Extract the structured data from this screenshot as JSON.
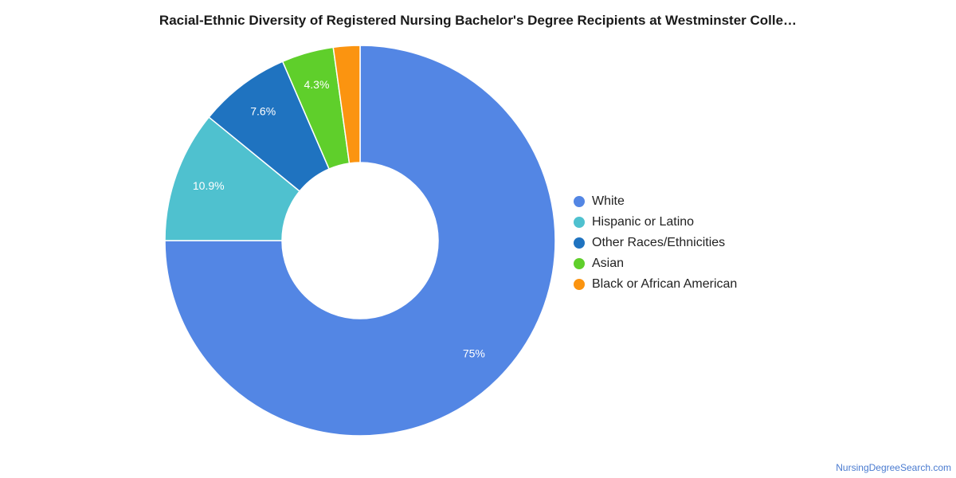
{
  "chart_data": {
    "type": "pie",
    "variant": "donut",
    "title": "Racial-Ethnic Diversity of Registered Nursing Bachelor's Degree Recipients at Westminster Colle…",
    "legend_position": "right",
    "slices": [
      {
        "label": "White",
        "value": 75,
        "display": "75%",
        "color": "#5386e4"
      },
      {
        "label": "Hispanic or Latino",
        "value": 10.9,
        "display": "10.9%",
        "color": "#4fc1cf"
      },
      {
        "label": "Other Races/Ethnicities",
        "value": 7.6,
        "display": "7.6%",
        "color": "#1f73c0"
      },
      {
        "label": "Asian",
        "value": 4.3,
        "display": "4.3%",
        "color": "#5fcf2b"
      },
      {
        "label": "Black or African American",
        "value": 2.2,
        "display": "",
        "color": "#fb9410"
      }
    ]
  },
  "footer": {
    "source": "NursingDegreeSearch.com"
  }
}
